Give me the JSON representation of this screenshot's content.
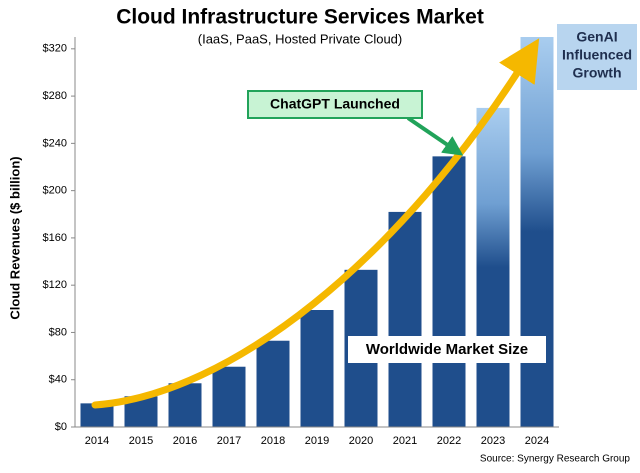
{
  "chart_data": {
    "type": "bar",
    "title": "Cloud Infrastructure Services Market",
    "subtitle": "(IaaS, PaaS, Hosted Private Cloud)",
    "y_label": "Cloud Revenues ($ billion)",
    "categories": [
      "2014",
      "2015",
      "2016",
      "2017",
      "2018",
      "2019",
      "2020",
      "2021",
      "2022",
      "2023",
      "2024"
    ],
    "values": [
      20,
      26,
      37,
      51,
      73,
      99,
      133,
      182,
      229,
      270,
      330
    ],
    "color": "#1f4e8c",
    "highlight_color": "#a9cdef",
    "ylim": [
      0,
      330
    ],
    "yticks": [
      {
        "value": 0,
        "label": "$0"
      },
      {
        "value": 40,
        "label": "$40"
      },
      {
        "value": 80,
        "label": "$80"
      },
      {
        "value": 120,
        "label": "$120"
      },
      {
        "value": 160,
        "label": "$160"
      },
      {
        "value": 200,
        "label": "$200"
      },
      {
        "value": 240,
        "label": "$240"
      },
      {
        "value": 280,
        "label": "$280"
      },
      {
        "value": 320,
        "label": "$320"
      }
    ],
    "annotation_chatgpt": "ChatGPT Launched",
    "annotation_genai": [
      "GenAI",
      "Influenced",
      "Growth"
    ],
    "annotation_market": "Worldwide Market Size",
    "source": "Source: Synergy Research Group"
  }
}
